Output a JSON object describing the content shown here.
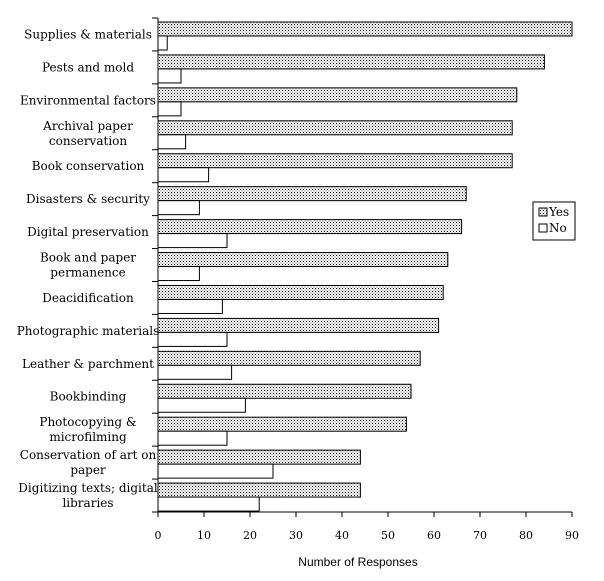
{
  "chart_data": {
    "type": "bar",
    "orientation": "horizontal",
    "categories": [
      [
        "Supplies & materials"
      ],
      [
        "Pests and mold"
      ],
      [
        "Environmental factors"
      ],
      [
        "Archival paper",
        "conservation"
      ],
      [
        "Book conservation"
      ],
      [
        "Disasters & security"
      ],
      [
        "Digital preservation"
      ],
      [
        "Book and paper",
        "permanence"
      ],
      [
        "Deacidification"
      ],
      [
        "Photographic materials"
      ],
      [
        "Leather & parchment"
      ],
      [
        "Bookbinding"
      ],
      [
        "Photocopying &",
        "microfilming"
      ],
      [
        "Conservation of art on",
        "paper"
      ],
      [
        "Digitizing texts; digital",
        "libraries"
      ]
    ],
    "series": [
      {
        "name": "Yes",
        "color": "#cfcfcf",
        "pattern": "dotted",
        "values": [
          90,
          84,
          78,
          77,
          77,
          67,
          66,
          63,
          62,
          61,
          57,
          55,
          54,
          44,
          44
        ]
      },
      {
        "name": "No",
        "color": "#ffffff",
        "pattern": "none",
        "values": [
          2,
          5,
          5,
          6,
          11,
          9,
          15,
          9,
          14,
          15,
          16,
          19,
          15,
          25,
          22
        ]
      }
    ],
    "xlabel": "Number of Responses",
    "ylabel": "",
    "xlim": [
      0,
      90
    ],
    "xticks": [
      0,
      10,
      20,
      30,
      40,
      50,
      60,
      70,
      80,
      90
    ],
    "grid": false,
    "legend": "right"
  }
}
